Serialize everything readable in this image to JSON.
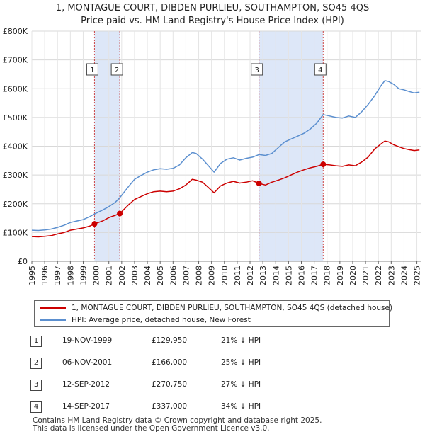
{
  "title": {
    "line1": "1, MONTAGUE COURT, DIBDEN PURLIEU, SOUTHAMPTON, SO45 4QS",
    "line2": "Price paid vs. HM Land Registry's House Price Index (HPI)"
  },
  "legend": {
    "property_label": "1, MONTAGUE COURT, DIBDEN PURLIEU, SOUTHAMPTON, SO45 4QS (detached house)",
    "hpi_label": "HPI: Average price, detached house, New Forest"
  },
  "colors": {
    "property": "#cc0000",
    "hpi": "#5b8fcf",
    "shade": "#dde7f8",
    "vline": "#cc4444"
  },
  "transactions": [
    {
      "n": "1",
      "date": "19-NOV-1999",
      "price": "£129,950",
      "hpi_diff": "21% ↓ HPI"
    },
    {
      "n": "2",
      "date": "06-NOV-2001",
      "price": "£166,000",
      "hpi_diff": "25% ↓ HPI"
    },
    {
      "n": "3",
      "date": "12-SEP-2012",
      "price": "£270,750",
      "hpi_diff": "27% ↓ HPI"
    },
    {
      "n": "4",
      "date": "14-SEP-2017",
      "price": "£337,000",
      "hpi_diff": "34% ↓ HPI"
    }
  ],
  "footer": {
    "line1": "Contains HM Land Registry data © Crown copyright and database right 2025.",
    "line2": "This data is licensed under the Open Government Licence v3.0."
  },
  "chart_data": {
    "type": "line",
    "title": "1, MONTAGUE COURT, DIBDEN PURLIEU, SOUTHAMPTON, SO45 4QS",
    "subtitle": "Price paid vs. HM Land Registry's House Price Index (HPI)",
    "xlim": [
      1995,
      2025.3
    ],
    "ylim": [
      0,
      800000
    ],
    "x_ticks": [
      "1995",
      "1996",
      "1997",
      "1998",
      "1999",
      "2000",
      "2001",
      "2002",
      "2003",
      "2004",
      "2005",
      "2006",
      "2007",
      "2008",
      "2009",
      "2010",
      "2011",
      "2012",
      "2013",
      "2014",
      "2015",
      "2016",
      "2017",
      "2018",
      "2019",
      "2020",
      "2021",
      "2022",
      "2023",
      "2024",
      "2025"
    ],
    "y_ticks": [
      {
        "v": 0,
        "label": "£0"
      },
      {
        "v": 100000,
        "label": "£100K"
      },
      {
        "v": 200000,
        "label": "£200K"
      },
      {
        "v": 300000,
        "label": "£300K"
      },
      {
        "v": 400000,
        "label": "£400K"
      },
      {
        "v": 500000,
        "label": "£500K"
      },
      {
        "v": 600000,
        "label": "£600K"
      },
      {
        "v": 700000,
        "label": "£700K"
      },
      {
        "v": 800000,
        "label": "£800K"
      }
    ],
    "shaded_periods": [
      [
        1999.88,
        2001.85
      ],
      [
        2012.7,
        2017.7
      ]
    ],
    "sales": [
      {
        "n": "1",
        "x": 1999.88,
        "y": 129950
      },
      {
        "n": "2",
        "x": 2001.85,
        "y": 166000
      },
      {
        "n": "3",
        "x": 2012.7,
        "y": 270750
      },
      {
        "n": "4",
        "x": 2017.7,
        "y": 337000
      }
    ],
    "series": [
      {
        "name": "HPI: Average price, detached house, New Forest",
        "color": "#5b8fcf",
        "x": [
          1995,
          1995.5,
          1996,
          1996.5,
          1997,
          1997.5,
          1998,
          1998.5,
          1999,
          1999.5,
          1999.88,
          2000.5,
          2001,
          2001.5,
          2001.85,
          2002.5,
          2003,
          2003.5,
          2004,
          2004.5,
          2005,
          2005.5,
          2006,
          2006.5,
          2007,
          2007.5,
          2007.8,
          2008.3,
          2008.8,
          2009.2,
          2009.7,
          2010.2,
          2010.7,
          2011.2,
          2011.7,
          2012.2,
          2012.7,
          2013.2,
          2013.7,
          2014.2,
          2014.7,
          2015.2,
          2015.7,
          2016.2,
          2016.7,
          2017.2,
          2017.7,
          2018.2,
          2018.7,
          2019.2,
          2019.7,
          2020.2,
          2020.7,
          2021.2,
          2021.7,
          2022.2,
          2022.5,
          2022.8,
          2023.2,
          2023.6,
          2024,
          2024.4,
          2024.8,
          2025.2
        ],
        "y": [
          108000,
          107000,
          109000,
          112000,
          118000,
          125000,
          135000,
          140000,
          145000,
          155000,
          164500,
          178000,
          190000,
          205000,
          221000,
          258000,
          285000,
          298000,
          310000,
          318000,
          322000,
          320000,
          323000,
          335000,
          360000,
          378000,
          375000,
          355000,
          330000,
          310000,
          340000,
          355000,
          360000,
          352000,
          358000,
          362000,
          371000,
          368000,
          375000,
          395000,
          415000,
          425000,
          435000,
          445000,
          460000,
          480000,
          510000,
          505000,
          500000,
          498000,
          505000,
          500000,
          520000,
          545000,
          575000,
          610000,
          628000,
          625000,
          615000,
          600000,
          596000,
          590000,
          585000,
          588000
        ]
      },
      {
        "name": "1, MONTAGUE COURT, DIBDEN PURLIEU, SOUTHAMPTON, SO45 4QS (detached house)",
        "color": "#cc0000",
        "x": [
          1995,
          1995.5,
          1996,
          1996.5,
          1997,
          1997.5,
          1998,
          1998.5,
          1999,
          1999.5,
          1999.88,
          2000.5,
          2001,
          2001.5,
          2001.85,
          2002.5,
          2003,
          2003.5,
          2004,
          2004.5,
          2005,
          2005.5,
          2006,
          2006.5,
          2007,
          2007.5,
          2007.8,
          2008.3,
          2008.8,
          2009.2,
          2009.7,
          2010.2,
          2010.7,
          2011.2,
          2011.7,
          2012.2,
          2012.7,
          2013.2,
          2013.7,
          2014.2,
          2014.7,
          2015.2,
          2015.7,
          2016.2,
          2016.7,
          2017.2,
          2017.7,
          2018.2,
          2018.7,
          2019.2,
          2019.7,
          2020.2,
          2020.7,
          2021.2,
          2021.7,
          2022.2,
          2022.5,
          2022.8,
          2023.2,
          2023.6,
          2024,
          2024.4,
          2024.8,
          2025.2
        ],
        "y": [
          86000,
          85000,
          87000,
          89000,
          95000,
          100000,
          108000,
          112000,
          116000,
          122000,
          129950,
          140000,
          152000,
          160000,
          166000,
          195000,
          215000,
          225000,
          235000,
          242000,
          244000,
          242000,
          244000,
          252000,
          265000,
          285000,
          282000,
          275000,
          255000,
          238000,
          262000,
          272000,
          278000,
          272000,
          275000,
          280000,
          270750,
          265000,
          275000,
          282000,
          290000,
          300000,
          310000,
          318000,
          325000,
          330000,
          337000,
          335000,
          332000,
          330000,
          335000,
          332000,
          345000,
          362000,
          390000,
          408000,
          418000,
          415000,
          405000,
          398000,
          392000,
          388000,
          385000,
          387000
        ]
      }
    ]
  }
}
